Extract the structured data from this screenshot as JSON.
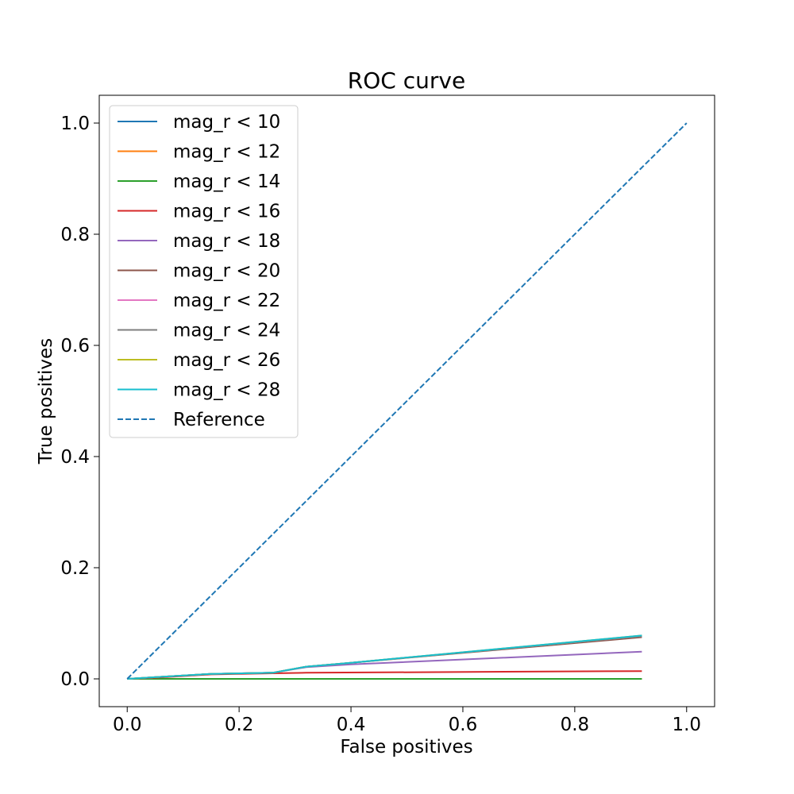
{
  "chart_data": {
    "type": "line",
    "title": "ROC curve",
    "xlabel": "False positives",
    "ylabel": "True positives",
    "xlim": [
      -0.05,
      1.05
    ],
    "ylim": [
      -0.05,
      1.05
    ],
    "xticks": [
      0.0,
      0.2,
      0.4,
      0.6,
      0.8,
      1.0
    ],
    "xtick_labels": [
      "0.0",
      "0.2",
      "0.4",
      "0.6",
      "0.8",
      "1.0"
    ],
    "yticks": [
      0.0,
      0.2,
      0.4,
      0.6,
      0.8,
      1.0
    ],
    "ytick_labels": [
      "0.0",
      "0.2",
      "0.4",
      "0.6",
      "0.8",
      "1.0"
    ],
    "grid": false,
    "legend_position": "upper-left",
    "series": [
      {
        "name": "mag_r < 10",
        "color": "#1f77b4",
        "style": "solid",
        "x": [
          0.0,
          0.92
        ],
        "y": [
          0.0,
          0.0
        ]
      },
      {
        "name": "mag_r < 12",
        "color": "#ff7f0e",
        "style": "solid",
        "x": [
          0.0,
          0.92
        ],
        "y": [
          0.0,
          0.0
        ]
      },
      {
        "name": "mag_r < 14",
        "color": "#2ca02c",
        "style": "solid",
        "x": [
          0.0,
          0.92
        ],
        "y": [
          0.0,
          0.0
        ]
      },
      {
        "name": "mag_r < 16",
        "color": "#d62728",
        "style": "solid",
        "x": [
          0.0,
          0.05,
          0.15,
          0.26,
          0.32,
          0.92
        ],
        "y": [
          0.0,
          0.002,
          0.008,
          0.01,
          0.011,
          0.014
        ]
      },
      {
        "name": "mag_r < 18",
        "color": "#9467bd",
        "style": "solid",
        "x": [
          0.0,
          0.05,
          0.15,
          0.26,
          0.32,
          0.4,
          0.92
        ],
        "y": [
          0.0,
          0.003,
          0.009,
          0.011,
          0.021,
          0.026,
          0.049
        ]
      },
      {
        "name": "mag_r < 20",
        "color": "#8c564b",
        "style": "solid",
        "x": [
          0.0,
          0.05,
          0.15,
          0.26,
          0.32,
          0.4,
          0.92
        ],
        "y": [
          0.0,
          0.003,
          0.009,
          0.011,
          0.022,
          0.029,
          0.075
        ]
      },
      {
        "name": "mag_r < 22",
        "color": "#e377c2",
        "style": "solid",
        "x": [
          0.0,
          0.05,
          0.15,
          0.26,
          0.32,
          0.4,
          0.92
        ],
        "y": [
          0.0,
          0.003,
          0.009,
          0.011,
          0.022,
          0.029,
          0.077
        ]
      },
      {
        "name": "mag_r < 24",
        "color": "#7f7f7f",
        "style": "solid",
        "x": [
          0.0,
          0.05,
          0.15,
          0.26,
          0.32,
          0.4,
          0.92
        ],
        "y": [
          0.0,
          0.003,
          0.009,
          0.011,
          0.022,
          0.029,
          0.077
        ]
      },
      {
        "name": "mag_r < 26",
        "color": "#bcbd22",
        "style": "solid",
        "x": [
          0.0,
          0.05,
          0.15,
          0.26,
          0.32,
          0.4,
          0.92
        ],
        "y": [
          0.0,
          0.003,
          0.009,
          0.011,
          0.022,
          0.029,
          0.078
        ]
      },
      {
        "name": "mag_r < 28",
        "color": "#17becf",
        "style": "solid",
        "x": [
          0.0,
          0.05,
          0.15,
          0.26,
          0.32,
          0.4,
          0.92
        ],
        "y": [
          0.0,
          0.003,
          0.009,
          0.011,
          0.022,
          0.029,
          0.078
        ]
      },
      {
        "name": "Reference",
        "color": "#1f77b4",
        "style": "dashed",
        "x": [
          0.0,
          1.0
        ],
        "y": [
          0.0,
          1.0
        ]
      }
    ]
  }
}
